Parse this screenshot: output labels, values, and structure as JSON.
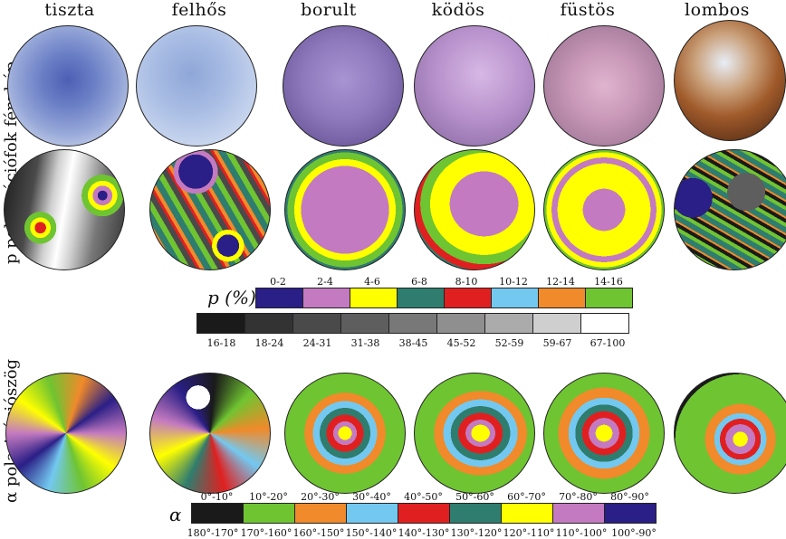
{
  "columns": [
    "tiszta",
    "felhős",
    "borult",
    "ködös",
    "füstös",
    "lombos"
  ],
  "rows": [
    "fénykép",
    "p polarizációfok",
    "α polarizációszög"
  ],
  "p_legend": {
    "symbol": "p (%)",
    "top_labels": [
      "0-2",
      "2-4",
      "4-6",
      "6-8",
      "8-10",
      "10-12",
      "12-14",
      "14-16"
    ],
    "top_colors": [
      "#2a1f86",
      "#c47ac0",
      "#ffff00",
      "#2f7d6e",
      "#e02020",
      "#73c8f0",
      "#f08a2a",
      "#6fc431"
    ],
    "bottom_labels": [
      "16-18",
      "18-24",
      "24-31",
      "31-38",
      "38-45",
      "45-52",
      "52-59",
      "59-67",
      "67-100"
    ],
    "bottom_colors": [
      "#1a1a1a",
      "#333333",
      "#4a4a4a",
      "#5e5e5e",
      "#787878",
      "#8f8f8f",
      "#ababab",
      "#cfcfcf",
      "#ffffff"
    ]
  },
  "alpha_legend": {
    "symbol": "α",
    "top_labels": [
      "0°-10°",
      "10°-20°",
      "20°-30°",
      "30°-40°",
      "40°-50°",
      "50°-60°",
      "60°-70°",
      "70°-80°",
      "80°-90°"
    ],
    "bottom_labels": [
      "180°-170°",
      "170°-160°",
      "160°-150°",
      "150°-140°",
      "140°-130°",
      "130°-120°",
      "120°-110°",
      "110°-100°",
      "100°-90°"
    ],
    "colors": [
      "#1a1a1a",
      "#6fc431",
      "#f08a2a",
      "#73c8f0",
      "#e02020",
      "#2f7d6e",
      "#ffff00",
      "#c47ac0",
      "#2a1f86"
    ]
  }
}
